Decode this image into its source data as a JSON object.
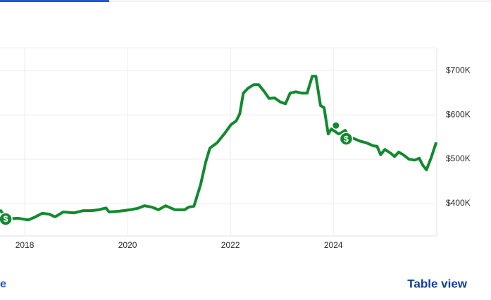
{
  "chart_data": {
    "type": "line",
    "x": [
      2017.52,
      2017.59,
      2017.66,
      2017.86,
      2018.07,
      2018.21,
      2018.34,
      2018.48,
      2018.59,
      2018.75,
      2018.96,
      2019.14,
      2019.3,
      2019.44,
      2019.58,
      2019.64,
      2019.85,
      2020.05,
      2020.19,
      2020.33,
      2020.47,
      2020.6,
      2020.74,
      2020.92,
      2021.11,
      2021.19,
      2021.29,
      2021.42,
      2021.52,
      2021.6,
      2021.74,
      2021.88,
      2022.01,
      2022.11,
      2022.18,
      2022.25,
      2022.34,
      2022.45,
      2022.55,
      2022.66,
      2022.75,
      2022.86,
      2022.97,
      2023.07,
      2023.16,
      2023.27,
      2023.38,
      2023.49,
      2023.59,
      2023.66,
      2023.75,
      2023.82,
      2023.9,
      2023.96,
      2024.04,
      2024.1,
      2024.16,
      2024.23,
      2024.32,
      2024.41,
      2024.51,
      2024.64,
      2024.78,
      2024.85,
      2024.92,
      2025.0,
      2025.12,
      2025.19,
      2025.27,
      2025.36,
      2025.47,
      2025.58,
      2025.67,
      2025.74,
      2025.81,
      2025.9,
      2026.0
    ],
    "series": [
      {
        "color": "#118a2f",
        "values": [
          386000,
          375000,
          365000,
          367000,
          363000,
          370000,
          378000,
          376000,
          370000,
          381000,
          379000,
          384000,
          384000,
          386000,
          390000,
          381000,
          383000,
          386000,
          389000,
          395000,
          392000,
          386000,
          395000,
          386000,
          386000,
          392000,
          394000,
          443000,
          494000,
          525000,
          537000,
          557000,
          578000,
          586000,
          602000,
          649000,
          660000,
          668000,
          668000,
          652000,
          637000,
          638000,
          629000,
          625000,
          649000,
          652000,
          649000,
          649000,
          687000,
          687000,
          621000,
          616000,
          557000,
          568000,
          562000,
          557000,
          560000,
          565000,
          549000,
          546000,
          541000,
          537000,
          530000,
          529000,
          510000,
          522000,
          513000,
          506000,
          516000,
          510000,
          500000,
          498000,
          502000,
          486000,
          476000,
          503000,
          538000
        ]
      }
    ],
    "events": [
      {
        "x": 2017.63,
        "value": 365000,
        "label": "$"
      },
      {
        "x": 2024.25,
        "value": 546000,
        "label": "$"
      }
    ],
    "highlight_point": {
      "x": 2024.05,
      "value": 576000
    },
    "xlim": [
      2017.52,
      2026.01
    ],
    "xticks": [
      2018,
      2020,
      2022,
      2024
    ],
    "ylim": [
      327000,
      751000
    ],
    "yticks": [
      {
        "value": 400000,
        "label": "$400K"
      },
      {
        "value": 500000,
        "label": "$500K"
      },
      {
        "value": 600000,
        "label": "$600K"
      },
      {
        "value": 700000,
        "label": "$700K"
      }
    ],
    "grid": true
  },
  "links": {
    "left_fragment": "e",
    "table_view": "Table view"
  }
}
